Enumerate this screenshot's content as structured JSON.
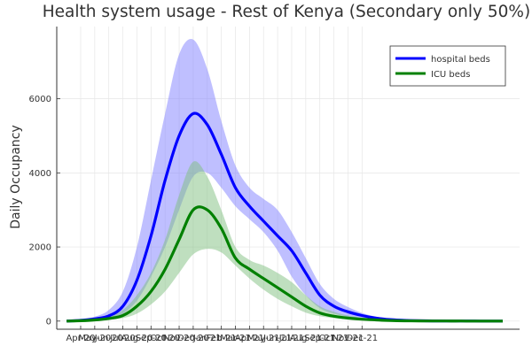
{
  "chart_data": {
    "type": "line",
    "title": "Health system usage - Rest of Kenya (Secondary only 50%)",
    "xlabel": "",
    "ylabel": "Daily Occupancy",
    "ylim": [
      -220,
      7950
    ],
    "xlim": [
      -17,
      312
    ],
    "x_unit": "days from Apr-20",
    "x_ticks": [
      {
        "label": "Apr-20",
        "value": 0
      },
      {
        "label": "May-20",
        "value": 10
      },
      {
        "label": "Jun-20",
        "value": 20
      },
      {
        "label": "Jul-20",
        "value": 30
      },
      {
        "label": "Aug-20",
        "value": 40
      },
      {
        "label": "Sep-20",
        "value": 50
      },
      {
        "label": "Oct-20",
        "value": 60
      },
      {
        "label": "Nov-20",
        "value": 70
      },
      {
        "label": "Dec-20",
        "value": 80
      },
      {
        "label": "Jan-21",
        "value": 90
      },
      {
        "label": "Feb-21",
        "value": 100
      },
      {
        "label": "Mar-21",
        "value": 110
      },
      {
        "label": "Apr-21",
        "value": 120
      },
      {
        "label": "May-21",
        "value": 130
      },
      {
        "label": "Jun-21",
        "value": 140
      },
      {
        "label": "Jul-21",
        "value": 150
      },
      {
        "label": "Aug-21",
        "value": 160
      },
      {
        "label": "Sep-21",
        "value": 170
      },
      {
        "label": "Oct-21",
        "value": 180
      },
      {
        "label": "Nov-21",
        "value": 190
      },
      {
        "label": "Dec-21",
        "value": 200
      }
    ],
    "y_ticks": [
      0,
      2000,
      4000,
      6000
    ],
    "grid": true,
    "legend": "top-right",
    "series": [
      {
        "name": "hospital beds",
        "color": "#0000ff",
        "band_color": "#8080ff",
        "x": [
          -10,
          0,
          10,
          20,
          30,
          40,
          50,
          60,
          70,
          80,
          90,
          100,
          110,
          120,
          130,
          140,
          150,
          160,
          170,
          180,
          190,
          200,
          210,
          220,
          230,
          240,
          250,
          260,
          270,
          280,
          290,
          300
        ],
        "y": [
          0,
          20,
          60,
          140,
          400,
          1100,
          2300,
          3800,
          5000,
          5600,
          5300,
          4500,
          3600,
          3100,
          2700,
          2300,
          1900,
          1300,
          700,
          400,
          250,
          150,
          80,
          40,
          20,
          10,
          5,
          3,
          2,
          1,
          0,
          0
        ],
        "lower": [
          0,
          10,
          30,
          70,
          200,
          550,
          1200,
          2000,
          3000,
          3900,
          4000,
          3600,
          3100,
          2750,
          2400,
          1900,
          1200,
          700,
          350,
          200,
          120,
          70,
          40,
          20,
          10,
          5,
          3,
          2,
          1,
          0,
          0,
          0
        ],
        "upper": [
          0,
          40,
          120,
          300,
          800,
          2000,
          3800,
          5600,
          7200,
          7600,
          6800,
          5400,
          4200,
          3600,
          3300,
          3000,
          2400,
          1700,
          1000,
          600,
          380,
          220,
          120,
          60,
          30,
          15,
          8,
          5,
          3,
          2,
          1,
          0
        ]
      },
      {
        "name": "ICU beds",
        "color": "#008000",
        "band_color": "#7fbf7f",
        "x": [
          -10,
          0,
          10,
          20,
          30,
          40,
          50,
          60,
          70,
          80,
          90,
          100,
          110,
          120,
          130,
          140,
          150,
          160,
          170,
          180,
          190,
          200,
          210,
          220,
          230,
          240,
          250,
          260,
          270,
          280,
          290,
          300
        ],
        "y": [
          0,
          10,
          30,
          70,
          150,
          400,
          800,
          1400,
          2200,
          3000,
          3000,
          2500,
          1700,
          1400,
          1150,
          900,
          650,
          400,
          220,
          130,
          80,
          50,
          30,
          15,
          8,
          4,
          2,
          1,
          1,
          0,
          0,
          0
        ],
        "lower": [
          0,
          5,
          15,
          35,
          80,
          200,
          450,
          800,
          1300,
          1800,
          1950,
          1850,
          1500,
          1150,
          850,
          600,
          400,
          230,
          130,
          80,
          50,
          30,
          18,
          10,
          5,
          3,
          2,
          1,
          0,
          0,
          0,
          0
        ],
        "upper": [
          0,
          20,
          60,
          140,
          300,
          700,
          1300,
          2200,
          3400,
          4300,
          3900,
          3000,
          2000,
          1650,
          1500,
          1300,
          1050,
          700,
          400,
          250,
          150,
          90,
          50,
          25,
          12,
          6,
          3,
          2,
          1,
          1,
          0,
          0
        ]
      }
    ]
  }
}
